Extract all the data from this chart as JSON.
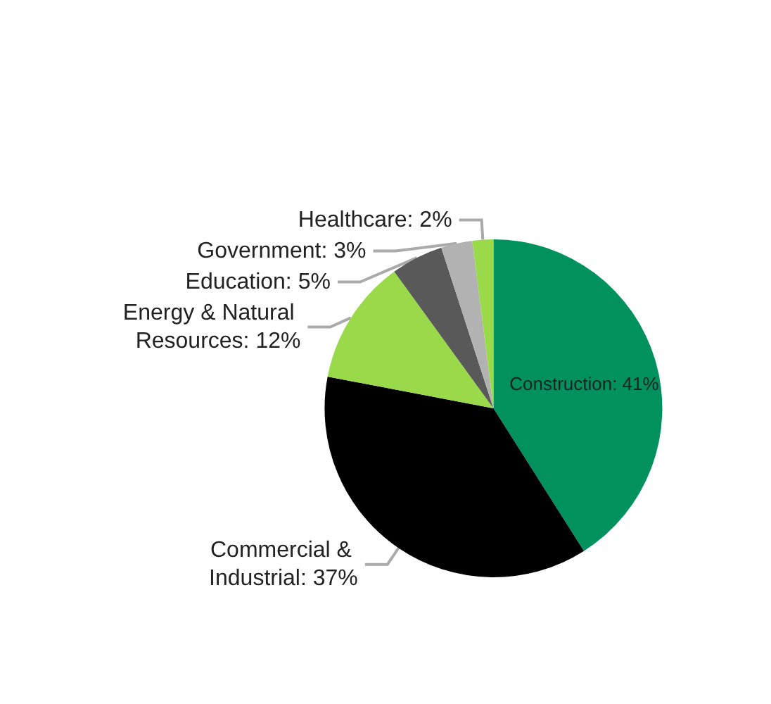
{
  "chart_data": {
    "type": "pie",
    "categories": [
      "Construction",
      "Commercial & Industrial",
      "Energy & Natural Resources",
      "Education",
      "Government",
      "Healthcare"
    ],
    "values": [
      41,
      37,
      12,
      5,
      3,
      2
    ],
    "value_labels": [
      "41%",
      "37%",
      "12%",
      "5%",
      "3%",
      "2%"
    ],
    "colors": [
      "#00915f",
      "#000000",
      "#99d94a",
      "#595959",
      "#b2b2b2",
      "#99d94a"
    ],
    "legend": false
  }
}
